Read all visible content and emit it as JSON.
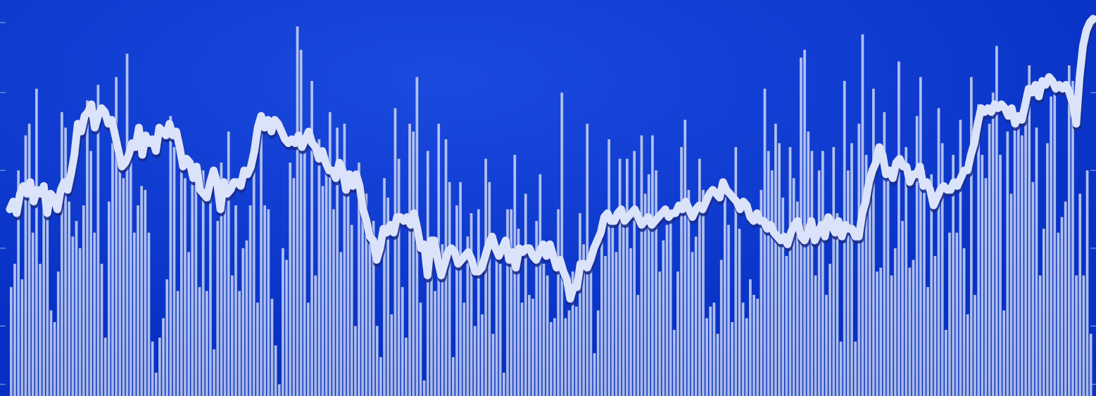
{
  "chart_data": {
    "type": "bar",
    "title": "",
    "xlabel": "",
    "ylabel": "",
    "grid": false,
    "legend": false,
    "ylim": [
      0,
      100
    ],
    "colors": {
      "background": "#0b34c8",
      "background_glow": "#1f4fe0",
      "bars": "#b3c3ee",
      "line": "#dbe3fb",
      "line_shadow": "#1a2a8a",
      "axis_ticks": "#6f86de"
    },
    "series": [
      {
        "kind": "bar",
        "values": [
          28,
          34,
          58,
          30,
          67,
          70,
          42,
          79,
          34,
          54,
          49,
          22,
          19,
          32,
          73,
          69,
          50,
          41,
          45,
          38,
          49,
          76,
          63,
          42,
          80,
          34,
          15,
          50,
          65,
          82,
          58,
          56,
          88,
          61,
          42,
          49,
          54,
          53,
          42,
          14,
          6,
          15,
          20,
          30,
          72,
          64,
          27,
          61,
          56,
          37,
          58,
          59,
          28,
          58,
          27,
          51,
          12,
          45,
          60,
          53,
          68,
          31,
          49,
          27,
          38,
          40,
          49,
          65,
          24,
          73,
          49,
          48,
          25,
          13,
          3,
          38,
          35,
          60,
          56,
          95,
          89,
          65,
          24,
          81,
          31,
          66,
          54,
          61,
          73,
          48,
          69,
          37,
          70,
          58,
          44,
          18,
          60,
          49,
          52,
          41,
          45,
          18,
          10,
          56,
          51,
          21,
          74,
          61,
          28,
          15,
          70,
          68,
          82,
          24,
          4,
          63,
          40,
          27,
          70,
          39,
          66,
          55,
          10,
          49,
          55,
          24,
          41,
          47,
          18,
          48,
          21,
          61,
          55,
          16,
          39,
          34,
          6,
          48,
          48,
          62,
          43,
          24,
          52,
          26,
          25,
          45,
          57,
          34,
          31,
          19,
          20,
          48,
          78,
          20,
          22,
          32,
          23,
          47,
          39,
          70,
          36,
          11,
          22,
          40,
          36,
          66,
          46,
          37,
          61,
          47,
          61,
          38,
          63,
          26,
          67,
          52,
          57,
          67,
          58,
          32,
          40,
          44,
          45,
          17,
          32,
          64,
          71,
          53,
          37,
          41,
          61,
          53,
          20,
          23,
          24,
          16,
          35,
          53,
          44,
          19,
          64,
          43,
          24,
          20,
          30,
          26,
          25,
          53,
          79,
          63,
          58,
          70,
          65,
          51,
          36,
          64,
          56,
          50,
          87,
          89,
          68,
          63,
          31,
          58,
          63,
          26,
          34,
          64,
          47,
          14,
          81,
          58,
          65,
          14,
          70,
          93,
          62,
          53,
          79,
          32,
          33,
          73,
          56,
          31,
          38,
          86,
          45,
          64,
          33,
          35,
          72,
          82,
          58,
          28,
          57,
          36,
          74,
          65,
          17,
          42,
          62,
          42,
          71,
          38,
          21,
          82,
          26,
          75,
          62,
          56,
          70,
          78,
          90,
          62,
          22,
          68,
          52,
          70,
          73,
          67,
          78,
          85,
          55,
          69,
          31,
          43,
          65,
          77,
          79,
          42,
          46,
          50,
          85,
          81,
          31,
          52,
          31,
          58,
          16
        ]
      },
      {
        "kind": "line",
        "values": [
          48,
          50,
          47,
          52,
          54,
          52,
          55,
          50,
          53,
          52,
          54,
          47,
          52,
          51,
          48,
          53,
          55,
          53,
          57,
          62,
          70,
          68,
          72,
          73,
          75,
          69,
          72,
          74,
          73,
          70,
          71,
          67,
          63,
          59,
          60,
          62,
          65,
          64,
          69,
          62,
          67,
          65,
          66,
          63,
          69,
          68,
          67,
          70,
          67,
          68,
          64,
          59,
          61,
          60,
          56,
          59,
          53,
          52,
          51,
          55,
          58,
          55,
          48,
          55,
          52,
          53,
          55,
          55,
          54,
          58,
          57,
          59,
          63,
          69,
          72,
          69,
          71,
          68,
          71,
          70,
          68,
          66,
          65,
          66,
          65,
          67,
          64,
          66,
          68,
          65,
          64,
          61,
          63,
          60,
          58,
          58,
          56,
          60,
          58,
          53,
          57,
          54,
          57,
          54,
          48,
          45,
          41,
          40,
          35,
          38,
          43,
          42,
          44,
          42,
          46,
          46,
          45,
          46,
          44,
          47,
          43,
          38,
          39,
          31,
          40,
          40,
          35,
          31,
          34,
          37,
          38,
          37,
          34,
          35,
          36,
          37,
          35,
          32,
          32,
          33,
          36,
          39,
          41,
          38,
          36,
          38,
          40,
          35,
          37,
          33,
          38,
          37,
          38,
          38,
          36,
          35,
          37,
          39,
          36,
          39,
          36,
          33,
          35,
          32,
          30,
          25,
          28,
          28,
          34,
          34,
          33,
          35,
          38,
          40,
          42,
          46,
          47,
          45,
          45,
          47,
          48,
          45,
          46,
          47,
          48,
          46,
          44,
          45,
          46,
          44,
          45,
          46,
          47,
          48,
          46,
          47,
          47,
          49,
          48,
          50,
          48,
          46,
          48,
          49,
          48,
          50,
          52,
          53,
          52,
          51,
          55,
          53,
          52,
          51,
          50,
          48,
          50,
          49,
          46,
          45,
          47,
          45,
          45,
          43,
          44,
          42,
          41,
          40,
          41,
          39,
          42,
          44,
          45,
          41,
          40,
          42,
          45,
          40,
          42,
          44,
          41,
          46,
          44,
          42,
          45,
          41,
          44,
          43,
          43,
          41,
          41,
          47,
          50,
          55,
          58,
          60,
          64,
          62,
          57,
          58,
          56,
          60,
          61,
          59,
          59,
          55,
          57,
          57,
          59,
          54,
          55,
          53,
          49,
          51,
          53,
          54,
          53,
          53,
          55,
          54,
          56,
          58,
          58,
          62,
          65,
          70,
          74,
          73,
          74,
          73,
          75,
          74,
          75,
          74,
          72,
          74,
          70,
          72,
          71,
          75,
          79,
          78,
          80,
          77,
          81,
          80,
          82,
          81,
          79,
          80,
          79,
          80,
          78,
          75,
          70,
          82,
          90,
          94,
          96,
          97
        ]
      }
    ]
  }
}
